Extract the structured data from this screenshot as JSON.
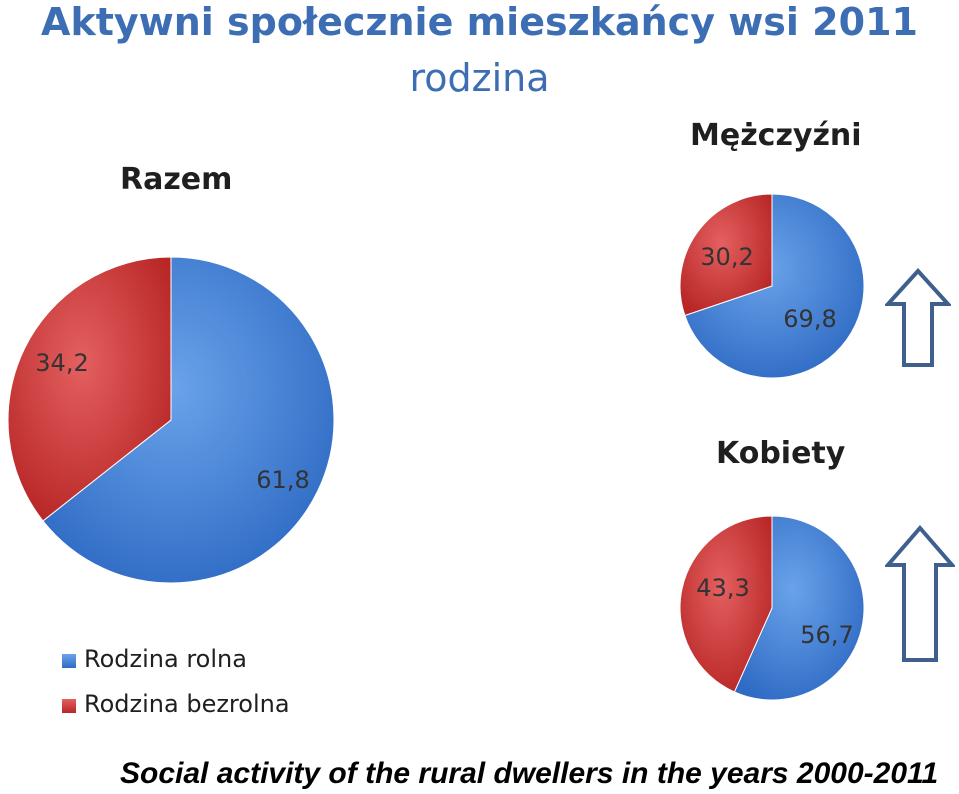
{
  "title": "Aktywni społecznie mieszkańcy wsi 2011",
  "subtitle": "rodzina",
  "footer": "Social activity of the rural dwellers in the years 2000-2011",
  "colors": {
    "rolna": "#3f7fd6",
    "bezrolna": "#d03535",
    "title": "#3d6eb4",
    "arrow": "#3f5f8e"
  },
  "icons": [
    "arrow-up-icon",
    "arrow-up-icon"
  ],
  "chart_data": [
    {
      "type": "pie",
      "title": "Razem",
      "categories": [
        "Rodzina rolna",
        "Rodzina bezrolna"
      ],
      "values": [
        61.8,
        34.2
      ],
      "labels": [
        "61,8",
        "34,2"
      ],
      "legend": "bottom-left"
    },
    {
      "type": "pie",
      "title": "Mężczyźni",
      "categories": [
        "Rodzina rolna",
        "Rodzina bezrolna"
      ],
      "values": [
        69.8,
        30.2
      ],
      "labels": [
        "69,8",
        "30,2"
      ]
    },
    {
      "type": "pie",
      "title": "Kobiety",
      "categories": [
        "Rodzina rolna",
        "Rodzina bezrolna"
      ],
      "values": [
        56.7,
        43.3
      ],
      "labels": [
        "56,7",
        "43,3"
      ]
    }
  ]
}
